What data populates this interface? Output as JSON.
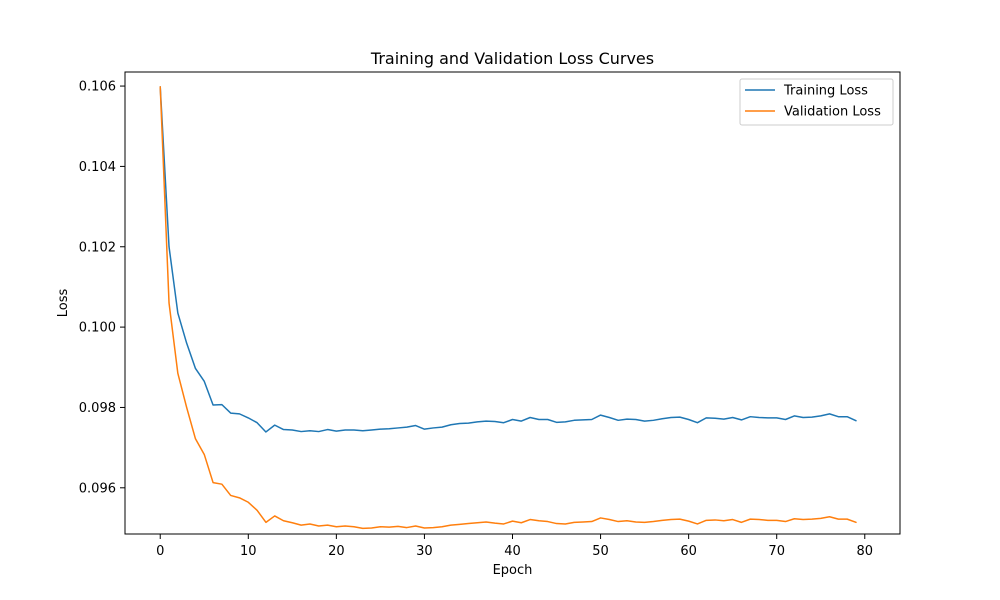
{
  "chart_data": {
    "type": "line",
    "title": "Training and Validation Loss Curves",
    "xlabel": "Epoch",
    "ylabel": "Loss",
    "xlim": [
      -4,
      84
    ],
    "ylim": [
      0.09485,
      0.10635
    ],
    "xticks": [
      0,
      10,
      20,
      30,
      40,
      50,
      60,
      70,
      80
    ],
    "xtick_labels": [
      "0",
      "10",
      "20",
      "30",
      "40",
      "50",
      "60",
      "70",
      "80"
    ],
    "yticks": [
      0.096,
      0.098,
      0.1,
      0.102,
      0.104,
      0.106
    ],
    "ytick_labels": [
      "0.096",
      "0.098",
      "0.100",
      "0.102",
      "0.104",
      "0.106"
    ],
    "grid": false,
    "legend_position": "top-right",
    "x": [
      0,
      1,
      2,
      3,
      4,
      5,
      6,
      7,
      8,
      9,
      10,
      11,
      12,
      13,
      14,
      15,
      16,
      17,
      18,
      19,
      20,
      21,
      22,
      23,
      24,
      25,
      26,
      27,
      28,
      29,
      30,
      31,
      32,
      33,
      34,
      35,
      36,
      37,
      38,
      39,
      40,
      41,
      42,
      43,
      44,
      45,
      46,
      47,
      48,
      49,
      50,
      51,
      52,
      53,
      54,
      55,
      56,
      57,
      58,
      59,
      60,
      61,
      62,
      63,
      64,
      65,
      66,
      67,
      68,
      69,
      70,
      71,
      72,
      73,
      74,
      75,
      76,
      77,
      78,
      79
    ],
    "series": [
      {
        "name": "Training Loss",
        "color": "#1f77b4",
        "values": [
          0.10598,
          0.102,
          0.10035,
          0.0996,
          0.09897,
          0.09865,
          0.09806,
          0.09807,
          0.09786,
          0.09784,
          0.09774,
          0.09762,
          0.09739,
          0.09756,
          0.09745,
          0.09744,
          0.0974,
          0.09742,
          0.0974,
          0.09745,
          0.09741,
          0.09744,
          0.09744,
          0.09742,
          0.09744,
          0.09746,
          0.09747,
          0.09749,
          0.09751,
          0.09755,
          0.09746,
          0.09749,
          0.09751,
          0.09757,
          0.0976,
          0.09761,
          0.09764,
          0.09766,
          0.09765,
          0.09762,
          0.0977,
          0.09766,
          0.09775,
          0.0977,
          0.0977,
          0.09763,
          0.09764,
          0.09768,
          0.09769,
          0.0977,
          0.09781,
          0.09775,
          0.09768,
          0.09771,
          0.0977,
          0.09766,
          0.09768,
          0.09772,
          0.09775,
          0.09776,
          0.0977,
          0.09762,
          0.09774,
          0.09773,
          0.09771,
          0.09775,
          0.09769,
          0.09777,
          0.09775,
          0.09774,
          0.09774,
          0.0977,
          0.09779,
          0.09775,
          0.09776,
          0.09779,
          0.09784,
          0.09777,
          0.09777,
          0.09767
        ]
      },
      {
        "name": "Validation Loss",
        "color": "#ff7f0e",
        "values": [
          0.10598,
          0.1006,
          0.09885,
          0.098,
          0.09722,
          0.09683,
          0.09613,
          0.09609,
          0.09581,
          0.09575,
          0.09564,
          0.09544,
          0.09514,
          0.0953,
          0.09518,
          0.09513,
          0.09507,
          0.0951,
          0.09505,
          0.09507,
          0.09503,
          0.09505,
          0.09503,
          0.09499,
          0.095,
          0.09503,
          0.09502,
          0.09504,
          0.09501,
          0.09505,
          0.095,
          0.09501,
          0.09503,
          0.09507,
          0.09509,
          0.09511,
          0.09513,
          0.09515,
          0.09512,
          0.0951,
          0.09517,
          0.09513,
          0.09521,
          0.09518,
          0.09516,
          0.09511,
          0.0951,
          0.09514,
          0.09515,
          0.09516,
          0.09525,
          0.09521,
          0.09516,
          0.09518,
          0.09515,
          0.09514,
          0.09516,
          0.09519,
          0.09521,
          0.09522,
          0.09517,
          0.0951,
          0.09519,
          0.0952,
          0.09518,
          0.09521,
          0.09514,
          0.09522,
          0.09521,
          0.09519,
          0.09519,
          0.09516,
          0.09523,
          0.09521,
          0.09522,
          0.09524,
          0.09528,
          0.09522,
          0.09522,
          0.09514
        ]
      }
    ]
  }
}
